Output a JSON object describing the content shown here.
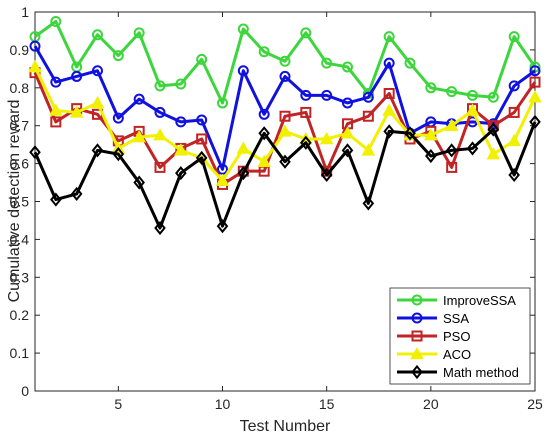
{
  "chart_data": {
    "type": "line",
    "xlabel": "Test Number",
    "ylabel": "Cumulative detection reward",
    "xlim": [
      1,
      25
    ],
    "ylim": [
      0,
      1
    ],
    "xticks": [
      5,
      10,
      15,
      20,
      25
    ],
    "yticks": [
      0,
      0.1,
      0.2,
      0.3,
      0.4,
      0.5,
      0.6,
      0.7,
      0.8,
      0.9,
      1
    ],
    "xtick_labels": [
      "5",
      "10",
      "15",
      "20",
      "25"
    ],
    "ytick_labels": [
      "0",
      "0.1",
      "0.2",
      "0.3",
      "0.4",
      "0.5",
      "0.6",
      "0.7",
      "0.8",
      "0.9",
      "1"
    ],
    "grid": false,
    "legend_position": "bottom-right",
    "x": [
      1,
      2,
      3,
      4,
      5,
      6,
      7,
      8,
      9,
      10,
      11,
      12,
      13,
      14,
      15,
      16,
      17,
      18,
      19,
      20,
      21,
      22,
      23,
      24,
      25
    ],
    "series": [
      {
        "name": "ImproveSSA",
        "color": "#3CD63C",
        "marker": "circle",
        "values": [
          0.935,
          0.975,
          0.855,
          0.94,
          0.885,
          0.945,
          0.805,
          0.81,
          0.875,
          0.76,
          0.955,
          0.895,
          0.87,
          0.945,
          0.865,
          0.855,
          0.785,
          0.935,
          0.865,
          0.8,
          0.79,
          0.78,
          0.775,
          0.935,
          0.855
        ]
      },
      {
        "name": "SSA",
        "color": "#1010E0",
        "marker": "circle",
        "values": [
          0.91,
          0.815,
          0.83,
          0.845,
          0.72,
          0.77,
          0.735,
          0.71,
          0.715,
          0.585,
          0.845,
          0.73,
          0.83,
          0.78,
          0.78,
          0.76,
          0.775,
          0.865,
          0.68,
          0.71,
          0.705,
          0.71,
          0.705,
          0.805,
          0.845
        ]
      },
      {
        "name": "PSO",
        "color": "#C02424",
        "marker": "square",
        "values": [
          0.84,
          0.71,
          0.745,
          0.73,
          0.66,
          0.685,
          0.59,
          0.64,
          0.665,
          0.545,
          0.58,
          0.58,
          0.725,
          0.735,
          0.58,
          0.705,
          0.725,
          0.785,
          0.665,
          0.685,
          0.59,
          0.745,
          0.7,
          0.735,
          0.815
        ]
      },
      {
        "name": "ACO",
        "color": "#F0F000",
        "marker": "triangle",
        "values": [
          0.855,
          0.74,
          0.735,
          0.76,
          0.64,
          0.67,
          0.675,
          0.635,
          0.615,
          0.555,
          0.64,
          0.605,
          0.685,
          0.665,
          0.665,
          0.68,
          0.635,
          0.74,
          0.675,
          0.675,
          0.7,
          0.74,
          0.625,
          0.66,
          0.775
        ]
      },
      {
        "name": "Math method",
        "color": "#000000",
        "marker": "diamond",
        "values": [
          0.63,
          0.505,
          0.52,
          0.635,
          0.625,
          0.55,
          0.43,
          0.575,
          0.615,
          0.435,
          0.575,
          0.68,
          0.605,
          0.655,
          0.57,
          0.635,
          0.495,
          0.685,
          0.68,
          0.62,
          0.635,
          0.64,
          0.69,
          0.57,
          0.71
        ]
      }
    ]
  }
}
